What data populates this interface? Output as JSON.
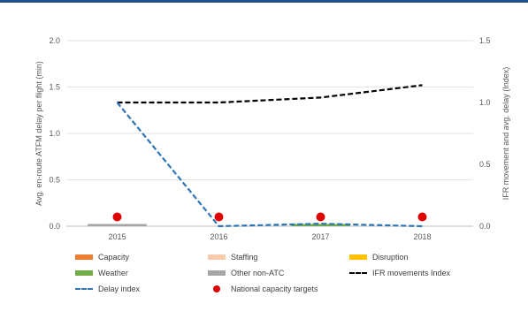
{
  "chart_data": {
    "type": "line",
    "categories": [
      "2015",
      "2016",
      "2017",
      "2018"
    ],
    "y_left": {
      "label": "Avg. en-route ATFM delay per flight (min)",
      "ticks": [
        "0.0",
        "0.5",
        "1.0",
        "1.5",
        "2.0"
      ],
      "range": [
        0,
        2.0
      ]
    },
    "y_right": {
      "label": "IFR movement and avg. delay (Index)",
      "ticks": [
        "0.0",
        "0.5",
        "1.0",
        "1.5"
      ],
      "range": [
        0,
        1.5
      ]
    },
    "series": [
      {
        "name": "Capacity",
        "kind": "bar",
        "axis": "left",
        "color": "#ed7d31",
        "values": [
          0,
          0,
          0,
          0
        ]
      },
      {
        "name": "Staffing",
        "kind": "bar",
        "axis": "left",
        "color": "#f8cbad",
        "values": [
          0,
          0,
          0,
          0
        ]
      },
      {
        "name": "Disruption",
        "kind": "bar",
        "axis": "left",
        "color": "#ffc000",
        "values": [
          0,
          0,
          0,
          0
        ]
      },
      {
        "name": "Weather",
        "kind": "bar",
        "axis": "left",
        "color": "#70ad47",
        "values": [
          0,
          0,
          0.01,
          0
        ]
      },
      {
        "name": "Other non-ATC",
        "kind": "bar",
        "axis": "left",
        "color": "#a6a6a6",
        "values": [
          0.02,
          0,
          0,
          0
        ]
      },
      {
        "name": "IFR movements Index",
        "kind": "line",
        "axis": "right",
        "color": "#000000",
        "dash": true,
        "values": [
          1.0,
          1.0,
          1.04,
          1.14
        ]
      },
      {
        "name": "Delay index",
        "kind": "line",
        "axis": "right",
        "color": "#2e75b6",
        "dash": true,
        "values": [
          1.0,
          0.0,
          0.02,
          0.0
        ]
      },
      {
        "name": "National capacity targets",
        "kind": "marker",
        "axis": "left",
        "color": "#e00000",
        "values": [
          0.1,
          0.1,
          0.1,
          0.1
        ]
      }
    ],
    "grid": true,
    "legend_position": "bottom"
  },
  "legend": {
    "items": [
      {
        "label": "Capacity",
        "symbol": "box",
        "color": "#ed7d31"
      },
      {
        "label": "Staffing",
        "symbol": "box",
        "color": "#f8cbad"
      },
      {
        "label": "Disruption",
        "symbol": "box",
        "color": "#ffc000"
      },
      {
        "label": "Weather",
        "symbol": "box",
        "color": "#70ad47"
      },
      {
        "label": "Other non-ATC",
        "symbol": "box",
        "color": "#a6a6a6"
      },
      {
        "label": "IFR movements Index",
        "symbol": "dash-black",
        "color": "#000000"
      },
      {
        "label": "Delay index",
        "symbol": "dash-blue",
        "color": "#2e75b6"
      },
      {
        "label": "National capacity targets",
        "symbol": "dot",
        "color": "#e00000"
      }
    ]
  }
}
